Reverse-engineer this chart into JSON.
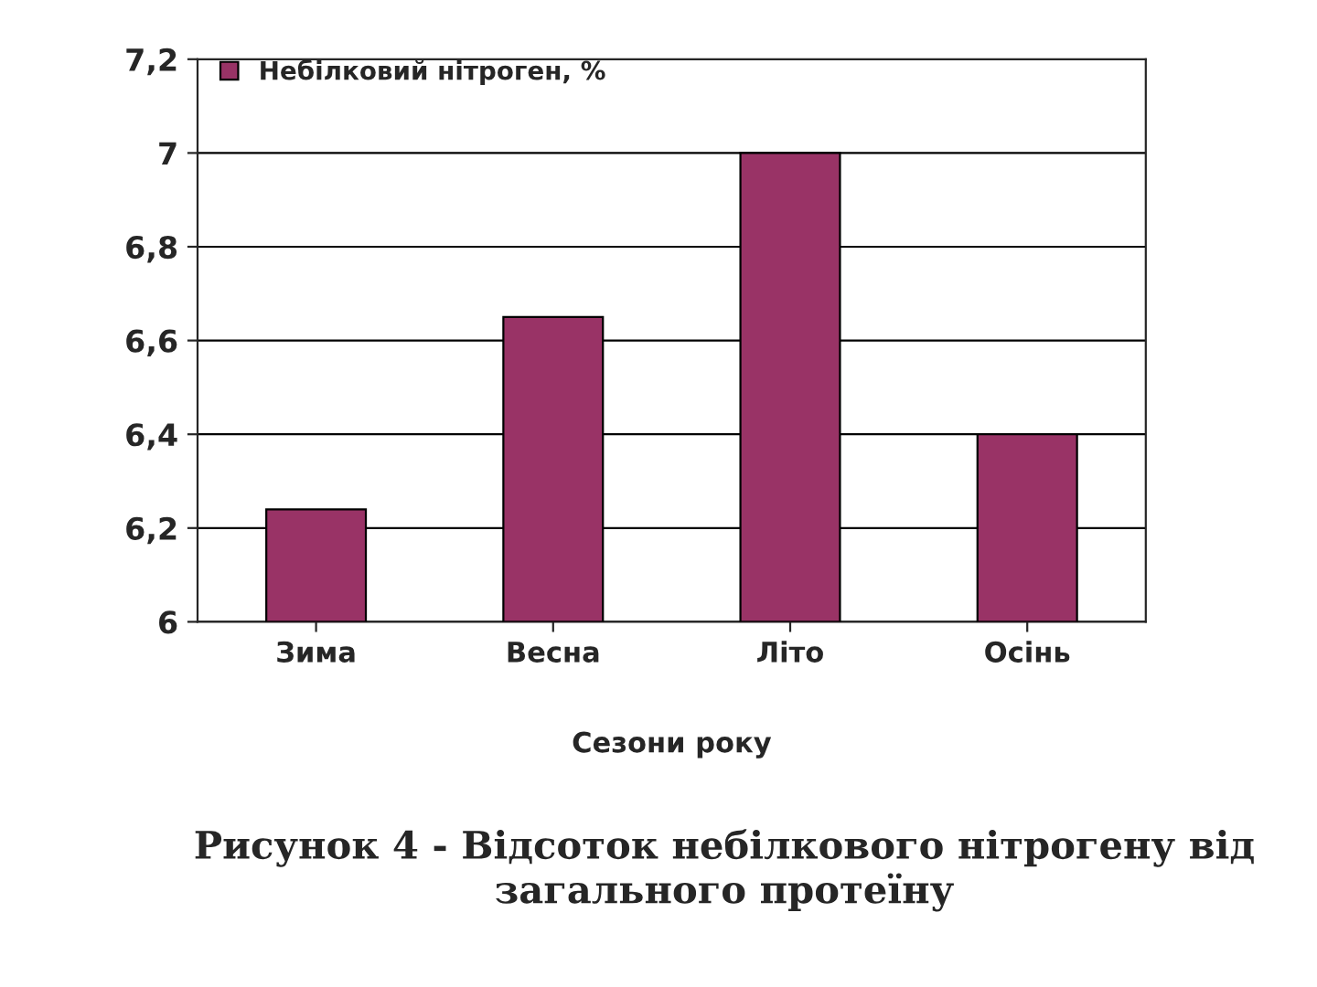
{
  "chart_data": {
    "type": "bar",
    "xlabel": "Сезони року",
    "categories": [
      "Зима",
      "Весна",
      "Літо",
      "Осінь"
    ],
    "series": [
      {
        "name": "Небілковий нітроген, %",
        "color": "#993366",
        "values": [
          6.24,
          6.65,
          7.0,
          6.4
        ]
      }
    ],
    "ylim": [
      6,
      7.2
    ],
    "yticks": [
      {
        "value": 6,
        "label": "6"
      },
      {
        "value": 6.2,
        "label": "6,2"
      },
      {
        "value": 6.4,
        "label": "6,4"
      },
      {
        "value": 6.6,
        "label": "6,6"
      },
      {
        "value": 6.8,
        "label": "6,8"
      },
      {
        "value": 7,
        "label": "7"
      },
      {
        "value": 7.2,
        "label": "7,2"
      }
    ],
    "grid": "y",
    "legend": "top left",
    "annotations": [
      "Рисунок 4 - Відсоток небілкового нітрогену від загального протеїну"
    ]
  }
}
